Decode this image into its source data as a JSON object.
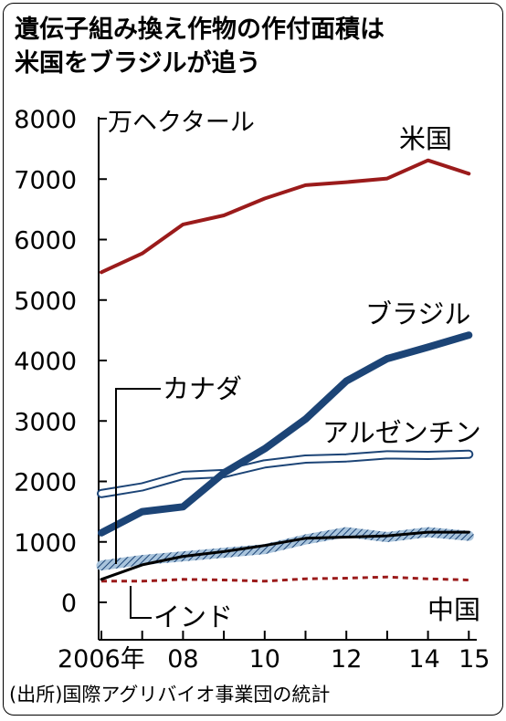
{
  "title_lines": [
    "遺伝子組み換え作物の作付面積は",
    "米国をブラジルが追う"
  ],
  "source": "(出所)国際アグリバイオ事業団の統計",
  "chart_data": {
    "type": "line",
    "unit": "万ヘクタール",
    "ylim": [
      0,
      8000
    ],
    "yticks": [
      0,
      1000,
      2000,
      3000,
      4000,
      5000,
      6000,
      7000,
      8000
    ],
    "x": [
      2006,
      2007,
      2008,
      2009,
      2010,
      2011,
      2012,
      2013,
      2014,
      2015
    ],
    "xtick_labels": [
      {
        "x": 2006,
        "label": "2006年"
      },
      {
        "x": 2008,
        "label": "08"
      },
      {
        "x": 2010,
        "label": "10"
      },
      {
        "x": 2012,
        "label": "12"
      },
      {
        "x": 2014,
        "label": "14"
      },
      {
        "x": 2015,
        "label": "15"
      }
    ],
    "grid": false,
    "series": [
      {
        "name": "米国",
        "color": "#9b1b1b",
        "style": "solid",
        "values": [
          5460,
          5770,
          6250,
          6400,
          6680,
          6900,
          6950,
          7010,
          7310,
          7090
        ]
      },
      {
        "name": "ブラジル",
        "color": "#1c4476",
        "style": "thick",
        "values": [
          1150,
          1500,
          1580,
          2140,
          2540,
          3030,
          3660,
          4030,
          4220,
          4420
        ]
      },
      {
        "name": "アルゼンチン",
        "color": "#1c4476",
        "style": "double",
        "values": [
          1800,
          1910,
          2100,
          2130,
          2290,
          2370,
          2390,
          2440,
          2430,
          2450
        ]
      },
      {
        "name": "カナダ",
        "color": "#1c4476",
        "style": "hatched",
        "values": [
          610,
          700,
          760,
          820,
          880,
          1040,
          1160,
          1080,
          1160,
          1100
        ]
      },
      {
        "name": "インド",
        "color": "#000000",
        "style": "solid",
        "values": [
          380,
          620,
          760,
          840,
          940,
          1060,
          1080,
          1100,
          1160,
          1160
        ]
      },
      {
        "name": "中国",
        "color": "#9b1b1b",
        "style": "dashed",
        "values": [
          350,
          350,
          380,
          370,
          350,
          390,
          400,
          420,
          390,
          370
        ]
      }
    ]
  }
}
